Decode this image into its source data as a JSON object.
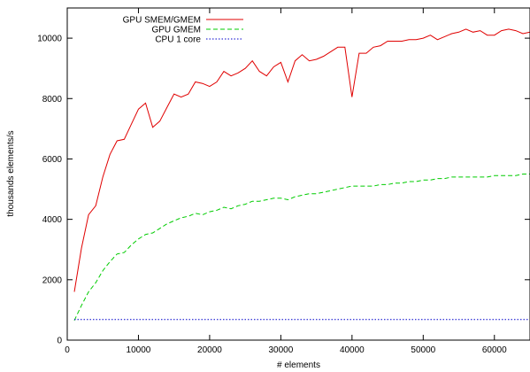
{
  "chart_data": {
    "type": "line",
    "title": "",
    "xlabel": "# elements",
    "ylabel": "thousands elements/s",
    "xlim": [
      0,
      65000
    ],
    "ylim": [
      0,
      11000
    ],
    "x_ticks": [
      0,
      10000,
      20000,
      30000,
      40000,
      50000,
      60000
    ],
    "y_ticks": [
      0,
      2000,
      4000,
      6000,
      8000,
      10000
    ],
    "grid": false,
    "legend_position": "top-left",
    "series": [
      {
        "name": "GPU SMEM/GMEM",
        "color": "#e00000",
        "style": "solid",
        "x": [
          1000,
          2000,
          3000,
          4000,
          5000,
          6000,
          7000,
          8000,
          9000,
          10000,
          11000,
          12000,
          13000,
          14000,
          15000,
          16000,
          17000,
          18000,
          19000,
          20000,
          21000,
          22000,
          23000,
          24000,
          25000,
          26000,
          27000,
          28000,
          29000,
          30000,
          31000,
          32000,
          33000,
          34000,
          35000,
          36000,
          37000,
          38000,
          39000,
          40000,
          41000,
          42000,
          43000,
          44000,
          45000,
          46000,
          47000,
          48000,
          49000,
          50000,
          51000,
          52000,
          53000,
          54000,
          55000,
          56000,
          57000,
          58000,
          59000,
          60000,
          61000,
          62000,
          63000,
          64000,
          65000
        ],
        "y": [
          1600,
          3050,
          4150,
          4450,
          5400,
          6150,
          6600,
          6650,
          7150,
          7650,
          7850,
          7050,
          7250,
          7700,
          8150,
          8050,
          8150,
          8550,
          8500,
          8400,
          8550,
          8900,
          8750,
          8850,
          9000,
          9250,
          8900,
          8750,
          9050,
          9200,
          8550,
          9250,
          9450,
          9250,
          9300,
          9400,
          9550,
          9700,
          9700,
          8050,
          9500,
          9500,
          9700,
          9750,
          9900,
          9900,
          9900,
          9950,
          9950,
          10000,
          10100,
          9950,
          10050,
          10150,
          10200,
          10300,
          10200,
          10250,
          10100,
          10100,
          10250,
          10300,
          10250,
          10150,
          10200
        ]
      },
      {
        "name": "GPU GMEM",
        "color": "#00cc00",
        "style": "dashed",
        "x": [
          1000,
          2000,
          3000,
          4000,
          5000,
          6000,
          7000,
          8000,
          9000,
          10000,
          11000,
          12000,
          13000,
          14000,
          15000,
          16000,
          17000,
          18000,
          19000,
          20000,
          21000,
          22000,
          23000,
          24000,
          25000,
          26000,
          27000,
          28000,
          29000,
          30000,
          31000,
          32000,
          33000,
          34000,
          35000,
          36000,
          37000,
          38000,
          39000,
          40000,
          41000,
          42000,
          43000,
          44000,
          45000,
          46000,
          47000,
          48000,
          49000,
          50000,
          51000,
          52000,
          53000,
          54000,
          55000,
          56000,
          57000,
          58000,
          59000,
          60000,
          61000,
          62000,
          63000,
          64000,
          65000
        ],
        "y": [
          650,
          1150,
          1600,
          1900,
          2300,
          2600,
          2850,
          2900,
          3150,
          3350,
          3500,
          3550,
          3700,
          3850,
          3950,
          4050,
          4100,
          4200,
          4150,
          4250,
          4300,
          4400,
          4350,
          4450,
          4500,
          4600,
          4600,
          4650,
          4700,
          4700,
          4650,
          4750,
          4800,
          4850,
          4850,
          4900,
          4950,
          5000,
          5050,
          5100,
          5100,
          5100,
          5100,
          5150,
          5150,
          5200,
          5200,
          5250,
          5250,
          5300,
          5300,
          5350,
          5350,
          5400,
          5400,
          5400,
          5400,
          5400,
          5400,
          5450,
          5450,
          5450,
          5450,
          5500,
          5500
        ]
      },
      {
        "name": "CPU 1 core",
        "color": "#0000cc",
        "style": "dotted",
        "x": [
          1000,
          65000
        ],
        "y": [
          680,
          680
        ]
      }
    ]
  }
}
